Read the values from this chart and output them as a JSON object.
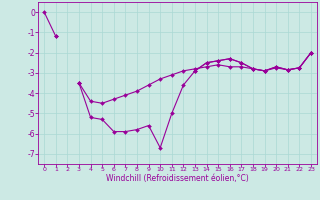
{
  "xlabel": "Windchill (Refroidissement éolien,°C)",
  "background_color": "#cce9e4",
  "line_color": "#990099",
  "grid_color": "#aad9d4",
  "ylim": [
    -7.5,
    0.5
  ],
  "xlim": [
    -0.5,
    23.5
  ],
  "yticks": [
    0,
    -1,
    -2,
    -3,
    -4,
    -5,
    -6,
    -7
  ],
  "xticks": [
    0,
    1,
    2,
    3,
    4,
    5,
    6,
    7,
    8,
    9,
    10,
    11,
    12,
    13,
    14,
    15,
    16,
    17,
    18,
    19,
    20,
    21,
    22,
    23
  ],
  "series_A": [
    0,
    -1.2,
    null,
    null,
    null,
    null,
    null,
    null,
    null,
    null,
    null,
    null,
    null,
    null,
    null,
    null,
    null,
    null,
    null,
    null,
    null,
    null,
    null,
    null
  ],
  "series_B": [
    null,
    -1.2,
    null,
    -3.5,
    -5.2,
    -5.3,
    -5.9,
    -5.9,
    -5.8,
    -5.6,
    -6.7,
    -5.0,
    -3.6,
    -2.9,
    -2.5,
    -2.4,
    -2.3,
    -2.5,
    -2.8,
    -2.9,
    -2.7,
    -2.85,
    -2.75,
    -2.0
  ],
  "series_C": [
    null,
    null,
    null,
    -3.5,
    null,
    null,
    null,
    null,
    null,
    null,
    null,
    null,
    null,
    -2.9,
    -2.5,
    -2.4,
    -2.3,
    -2.5,
    -2.8,
    -2.9,
    -2.7,
    -2.85,
    -2.75,
    -2.0
  ],
  "series_D": [
    null,
    null,
    null,
    -3.5,
    -4.4,
    -4.5,
    -4.3,
    -4.1,
    -3.9,
    -3.6,
    -3.3,
    -3.1,
    -2.9,
    -2.8,
    -2.7,
    -2.6,
    -2.7,
    -2.7,
    -2.8,
    -2.9,
    -2.75,
    -2.85,
    -2.75,
    -2.0
  ]
}
